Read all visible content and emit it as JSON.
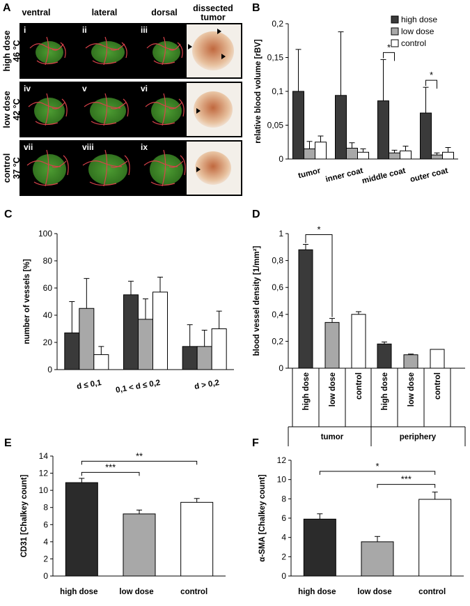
{
  "panel_a": {
    "label": "A",
    "column_headers": [
      "ventral",
      "lateral",
      "dorsal",
      "dissected tumor"
    ],
    "rows": [
      {
        "label": "high dose",
        "temp": "46 °C",
        "views": [
          "i",
          "ii",
          "iii"
        ]
      },
      {
        "label": "low dose",
        "temp": "42 °C",
        "views": [
          "iv",
          "v",
          "vi"
        ]
      },
      {
        "label": "control",
        "temp": "37 °C",
        "views": [
          "vii",
          "viii",
          "ix"
        ]
      }
    ],
    "colors": {
      "tumor": "#3f8f2a",
      "vessels": "#d8424a",
      "background": "#000000"
    }
  },
  "chart_data": [
    {
      "id": "B",
      "type": "bar",
      "label": "B",
      "categories": [
        "tumor",
        "inner coat",
        "middle coat",
        "outer coat"
      ],
      "series": [
        {
          "name": "high dose",
          "color": "#3a3a3a",
          "values": [
            0.1,
            0.094,
            0.086,
            0.068
          ],
          "errors": [
            0.062,
            0.094,
            0.061,
            0.038
          ]
        },
        {
          "name": "low dose",
          "color": "#a8a8a8",
          "values": [
            0.015,
            0.016,
            0.009,
            0.006
          ],
          "errors": [
            0.011,
            0.008,
            0.004,
            0.003
          ]
        },
        {
          "name": "control",
          "color": "#ffffff",
          "values": [
            0.025,
            0.01,
            0.012,
            0.01
          ],
          "errors": [
            0.009,
            0.005,
            0.007,
            0.007
          ]
        }
      ],
      "ylabel": "relative blood volume [rBV]",
      "ylim": [
        0,
        0.2
      ],
      "yticks": [
        "0",
        "0,05",
        "0,1",
        "0,15",
        "0,2"
      ],
      "legend": "top-right",
      "significance": [
        {
          "category": "middle coat",
          "text": "*"
        },
        {
          "category": "outer coat",
          "text": "*"
        }
      ]
    },
    {
      "id": "C",
      "type": "bar",
      "label": "C",
      "categories": [
        "d ≤ 0,1",
        "0,1 < d ≤ 0,2",
        "d > 0,2"
      ],
      "series": [
        {
          "name": "high dose",
          "color": "#3a3a3a",
          "values": [
            27,
            55,
            17
          ],
          "errors": [
            23,
            10,
            16
          ]
        },
        {
          "name": "low dose",
          "color": "#a8a8a8",
          "values": [
            45,
            37,
            17
          ],
          "errors": [
            22,
            15,
            12
          ]
        },
        {
          "name": "control",
          "color": "#ffffff",
          "values": [
            11,
            57,
            30
          ],
          "errors": [
            6,
            11,
            13
          ]
        }
      ],
      "ylabel": "number of vessels [%]",
      "ylim": [
        0,
        100
      ],
      "yticks": [
        "0",
        "20",
        "40",
        "60",
        "80",
        "100"
      ]
    },
    {
      "id": "D",
      "type": "bar",
      "label": "D",
      "categories": [
        "high dose",
        "low dose",
        "control",
        "high dose",
        "low dose",
        "control"
      ],
      "groups": [
        "tumor",
        "periphery"
      ],
      "values": [
        0.88,
        0.34,
        0.4,
        0.18,
        0.1,
        0.14
      ],
      "errors": [
        0.04,
        0.03,
        0.02,
        0.015,
        0.005,
        0.0
      ],
      "colors": [
        "#3a3a3a",
        "#a8a8a8",
        "#ffffff",
        "#3a3a3a",
        "#a8a8a8",
        "#ffffff"
      ],
      "ylabel": "blood vessel density [1/mm²]",
      "ylim": [
        0,
        1
      ],
      "yticks": [
        "0",
        "0,2",
        "0,4",
        "0,6",
        "0,8",
        "1"
      ],
      "significance": [
        {
          "text": "*"
        }
      ]
    },
    {
      "id": "E",
      "type": "bar",
      "label": "E",
      "categories": [
        "high dose",
        "low dose",
        "control"
      ],
      "values": [
        10.9,
        7.25,
        8.6
      ],
      "errors": [
        0.5,
        0.45,
        0.45
      ],
      "colors": [
        "#2b2b2b",
        "#a8a8a8",
        "#ffffff"
      ],
      "ylabel": "CD31 [Chalkey count]",
      "ylim": [
        0,
        14
      ],
      "yticks": [
        "0",
        "2",
        "4",
        "6",
        "8",
        "10",
        "12",
        "14"
      ],
      "significance": [
        {
          "text": "***"
        },
        {
          "text": "**"
        }
      ]
    },
    {
      "id": "F",
      "type": "bar",
      "label": "F",
      "categories": [
        "high dose",
        "low dose",
        "control"
      ],
      "values": [
        5.9,
        3.55,
        7.95
      ],
      "errors": [
        0.55,
        0.55,
        0.75
      ],
      "colors": [
        "#2b2b2b",
        "#a8a8a8",
        "#ffffff"
      ],
      "ylabel": "α-SMA [Chalkey count]",
      "ylim": [
        0,
        12
      ],
      "yticks": [
        "0",
        "2",
        "4",
        "6",
        "8",
        "10",
        "12"
      ],
      "significance": [
        {
          "text": "*"
        },
        {
          "text": "***"
        }
      ]
    }
  ]
}
